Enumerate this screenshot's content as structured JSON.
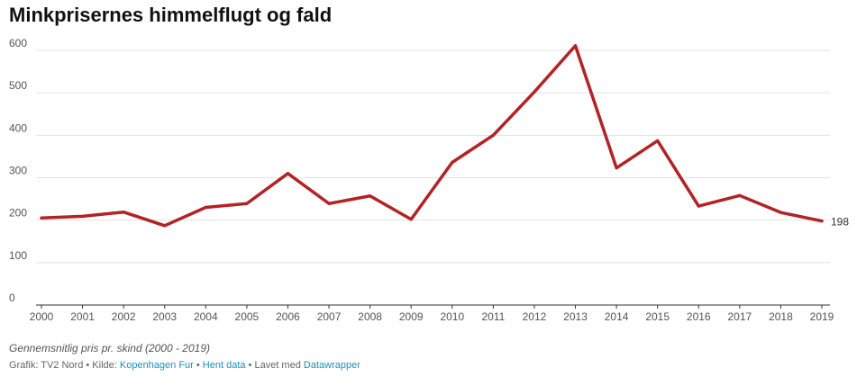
{
  "chart_data": {
    "type": "line",
    "title": "Minkprisernes himmelflugt og fald",
    "notes": "Gennemsnitlig pris pr. skind (2000 - 2019)",
    "x": [
      "2000",
      "2001",
      "2002",
      "2003",
      "2004",
      "2005",
      "2006",
      "2007",
      "2008",
      "2009",
      "2010",
      "2011",
      "2012",
      "2013",
      "2014",
      "2015",
      "2016",
      "2017",
      "2018",
      "2019"
    ],
    "series": [
      {
        "values": [
          205,
          209,
          219,
          187,
          230,
          239,
          310,
          239,
          257,
          202,
          336,
          400,
          502,
          611,
          323,
          387,
          233,
          258,
          218,
          198
        ],
        "color": "#b22325"
      }
    ],
    "end_label": "198",
    "ylim": [
      0,
      600
    ],
    "yticks": [
      "0",
      "100",
      "200",
      "300",
      "400",
      "500",
      "600"
    ],
    "grid": true,
    "legend": "none"
  },
  "footer": {
    "graphic": "Grafik: TV2 Nord",
    "sep1": " • Kilde: ",
    "source": "Kopenhagen Fur",
    "sep2": " • ",
    "get_data": "Hent data",
    "sep3": " • Lavet med ",
    "made_with": "Datawrapper"
  }
}
